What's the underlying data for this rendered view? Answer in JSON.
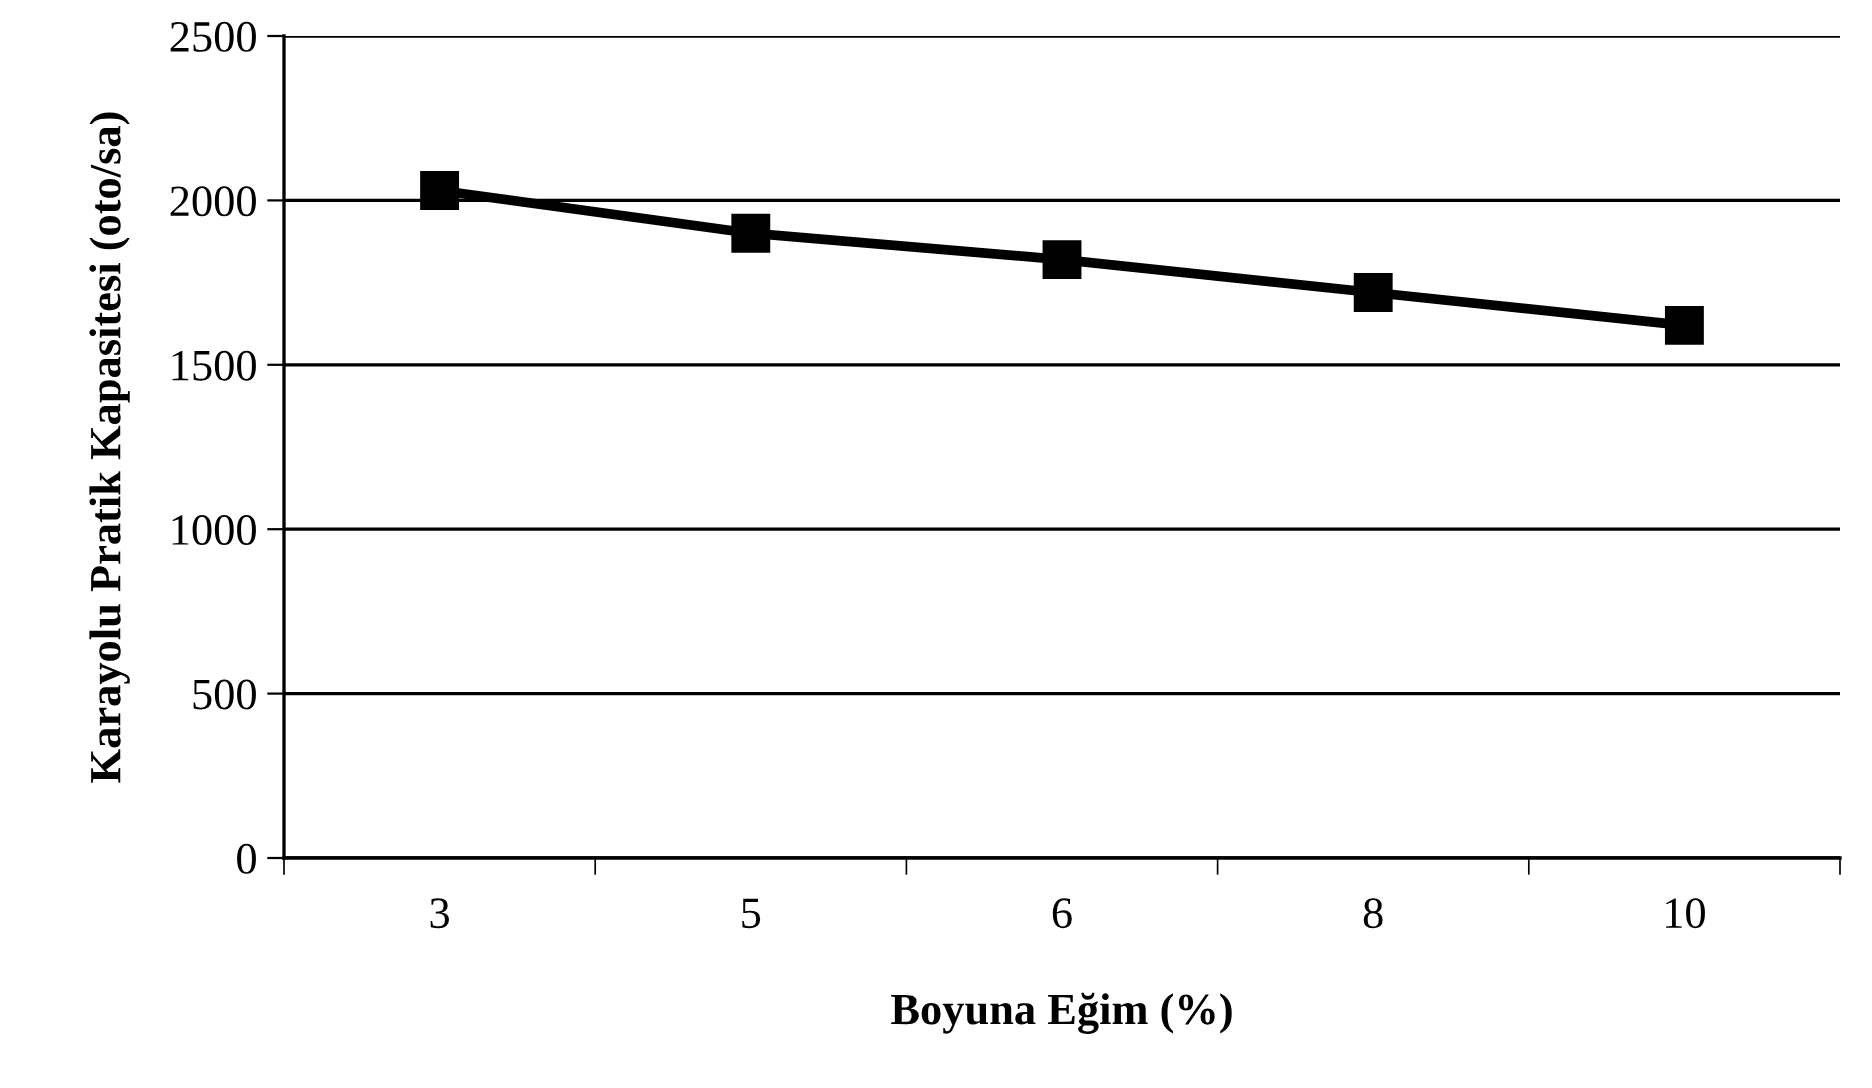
{
  "chart_data": {
    "type": "line",
    "xlabel": "Boyuna Eğim (%)",
    "ylabel": "Karayolu Pratik Kapasitesi (oto/sa)",
    "categories": [
      "3",
      "5",
      "6",
      "8",
      "10"
    ],
    "series": [
      {
        "color": "#000000",
        "values": [
          2030,
          1900,
          1820,
          1720,
          1620
        ]
      }
    ],
    "ylim": [
      0,
      2500
    ],
    "yticks": [
      0,
      500,
      1000,
      1500,
      2000,
      2500
    ],
    "grid": "y",
    "marker": "square",
    "line_style": "solid",
    "legend": false
  }
}
